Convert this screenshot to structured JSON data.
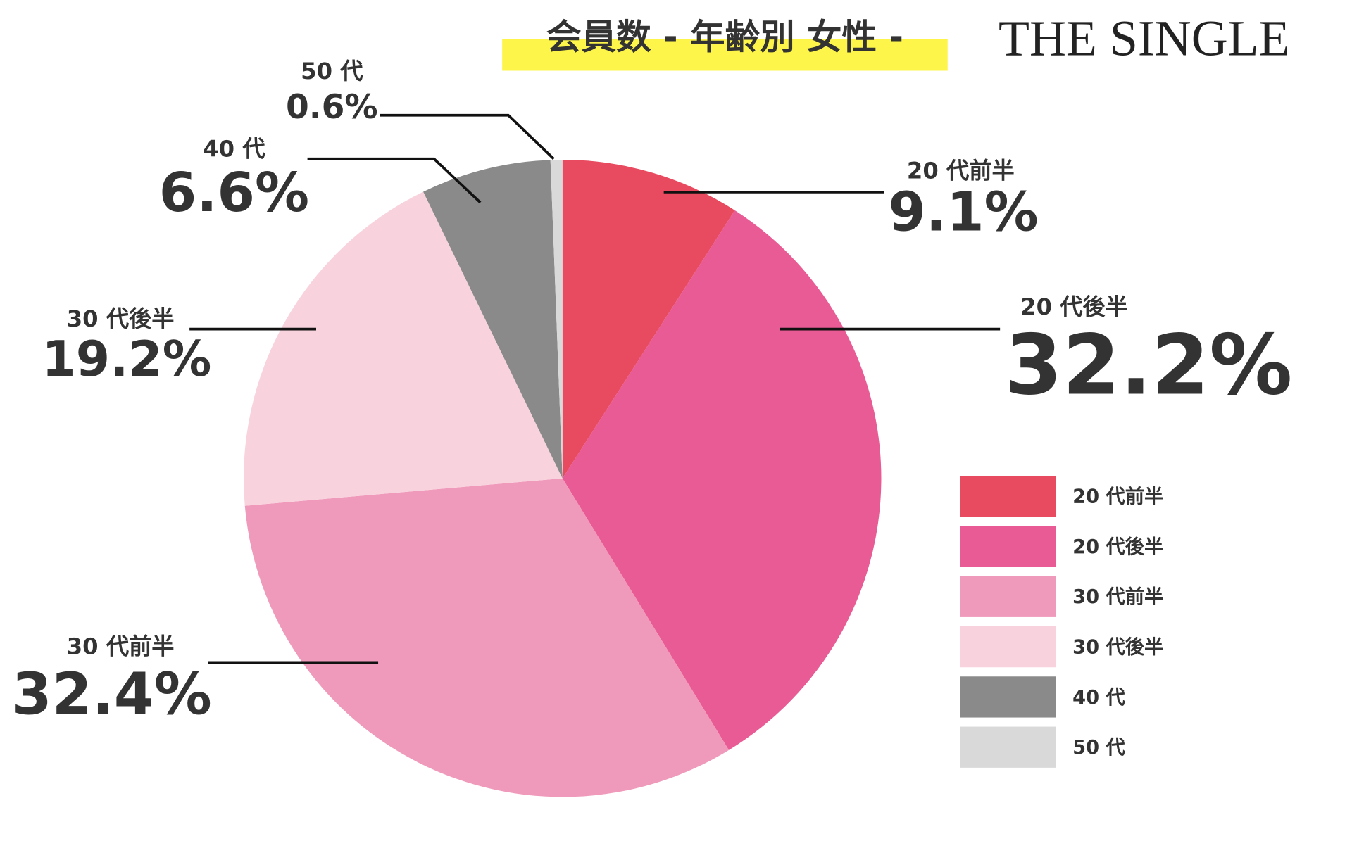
{
  "chart_data": {
    "type": "pie",
    "title": "会員数 - 年齢別 女性 -",
    "brand": "THE SINGLE",
    "categories": [
      "20 代前半",
      "20 代後半",
      "30 代前半",
      "30 代後半",
      "40 代",
      "50 代"
    ],
    "values": [
      9.1,
      32.2,
      32.4,
      19.2,
      6.6,
      0.6
    ],
    "value_labels": [
      "9.1%",
      "32.2%",
      "32.4%",
      "19.2%",
      "6.6%",
      "0.6%"
    ],
    "colors": [
      "#e84a5f",
      "#e95b94",
      "#f09abb",
      "#f8d3dd",
      "#8a8a8a",
      "#d9d9d9"
    ],
    "legend": "right"
  }
}
